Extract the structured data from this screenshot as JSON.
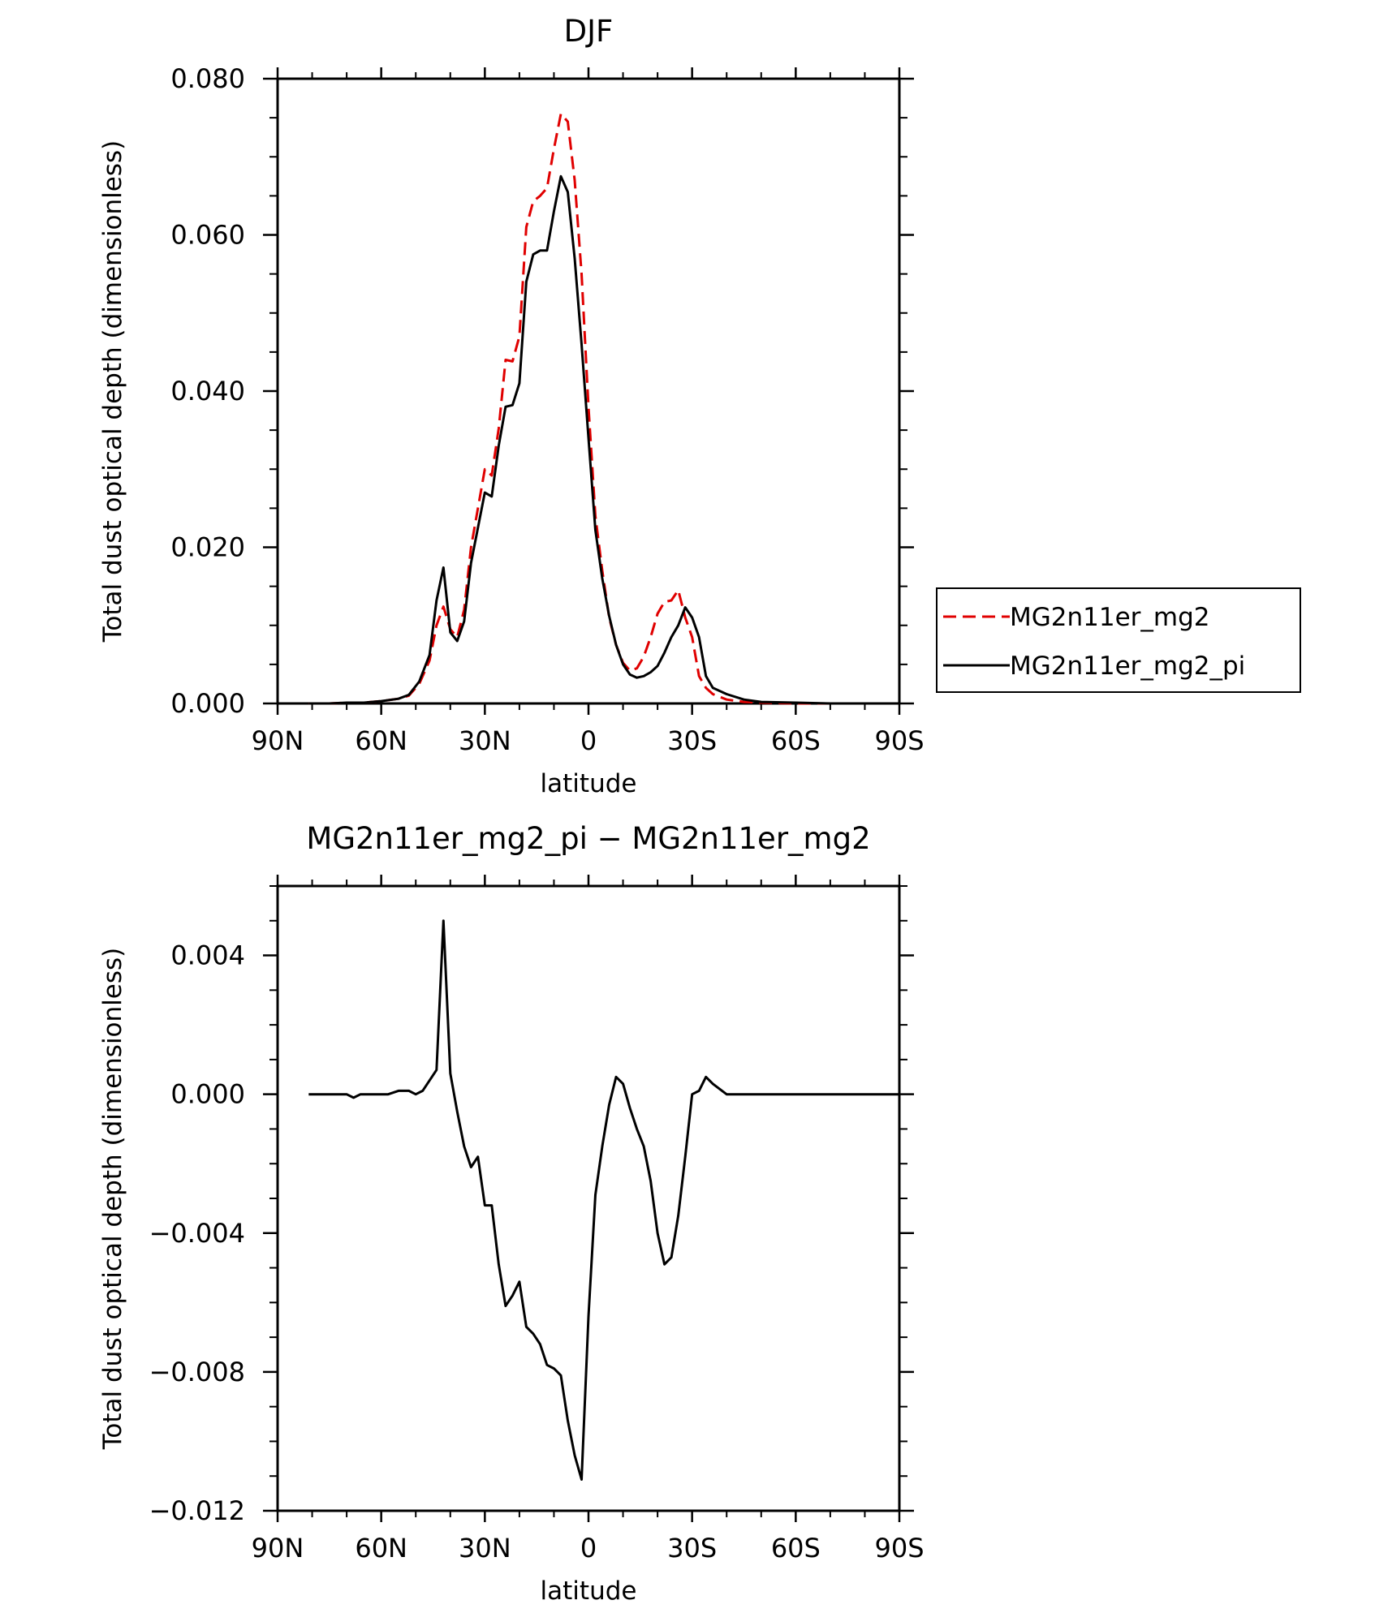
{
  "chart_data": [
    {
      "type": "line",
      "title": "DJF",
      "xlabel": "latitude",
      "ylabel": "Total dust optical depth (dimensionless)",
      "xlim": [
        90,
        -90
      ],
      "ylim": [
        0.0,
        0.08
      ],
      "x_ticks": [
        {
          "value": 90,
          "label": "90N"
        },
        {
          "value": 60,
          "label": "60N"
        },
        {
          "value": 30,
          "label": "30N"
        },
        {
          "value": 0,
          "label": "0"
        },
        {
          "value": -30,
          "label": "30S"
        },
        {
          "value": -60,
          "label": "60S"
        },
        {
          "value": -90,
          "label": "90S"
        }
      ],
      "y_ticks": [
        {
          "value": 0.0,
          "label": "0.000"
        },
        {
          "value": 0.02,
          "label": "0.020"
        },
        {
          "value": 0.04,
          "label": "0.040"
        },
        {
          "value": 0.06,
          "label": "0.060"
        },
        {
          "value": 0.08,
          "label": "0.080"
        }
      ],
      "legend": {
        "position": "right"
      },
      "series": [
        {
          "name": "MG2n11er_mg2",
          "color": "#e00000",
          "dash": "dashed",
          "x": [
            81,
            75,
            70,
            65,
            60,
            55,
            52,
            49,
            46,
            44,
            42,
            40,
            38,
            36,
            34,
            32,
            30,
            28,
            26,
            24,
            22,
            20,
            18,
            16,
            14,
            12,
            10,
            8,
            6,
            4,
            2,
            0,
            -2,
            -4,
            -6,
            -8,
            -10,
            -12,
            -14,
            -16,
            -18,
            -20,
            -22,
            -24,
            -26,
            -28,
            -30,
            -32,
            -34,
            -36,
            -40,
            -45,
            -50,
            -60,
            -70,
            -80,
            -90
          ],
          "y": [
            0.0,
            0.0,
            0.0001,
            0.0001,
            0.0003,
            0.0006,
            0.001,
            0.0025,
            0.0055,
            0.01,
            0.0124,
            0.0095,
            0.0085,
            0.012,
            0.02,
            0.025,
            0.03,
            0.0292,
            0.0352,
            0.044,
            0.0438,
            0.047,
            0.061,
            0.0643,
            0.065,
            0.066,
            0.071,
            0.0755,
            0.0745,
            0.067,
            0.055,
            0.038,
            0.024,
            0.017,
            0.011,
            0.0075,
            0.0052,
            0.0042,
            0.0045,
            0.006,
            0.0085,
            0.0115,
            0.013,
            0.0132,
            0.0145,
            0.011,
            0.0085,
            0.0035,
            0.002,
            0.0012,
            0.0005,
            0.0002,
            0.0001,
            0.0,
            0.0,
            0.0,
            0.0
          ]
        },
        {
          "name": "MG2n11er_mg2_pi",
          "color": "#000000",
          "dash": "solid",
          "x": [
            81,
            75,
            70,
            65,
            60,
            55,
            52,
            49,
            46,
            44,
            42,
            40,
            38,
            36,
            34,
            32,
            30,
            28,
            26,
            24,
            22,
            20,
            18,
            16,
            14,
            12,
            10,
            8,
            6,
            4,
            2,
            0,
            -2,
            -4,
            -6,
            -8,
            -10,
            -12,
            -14,
            -16,
            -18,
            -20,
            -22,
            -24,
            -26,
            -28,
            -30,
            -32,
            -34,
            -36,
            -40,
            -45,
            -50,
            -60,
            -70,
            -80,
            -90
          ],
          "y": [
            0.0,
            0.0,
            0.0001,
            0.0001,
            0.0003,
            0.0006,
            0.0011,
            0.0028,
            0.0062,
            0.0132,
            0.0174,
            0.0091,
            0.008,
            0.0105,
            0.018,
            0.0225,
            0.027,
            0.0265,
            0.033,
            0.038,
            0.0382,
            0.041,
            0.054,
            0.0575,
            0.058,
            0.058,
            0.063,
            0.0675,
            0.0655,
            0.057,
            0.046,
            0.034,
            0.0222,
            0.016,
            0.0112,
            0.0075,
            0.005,
            0.0037,
            0.0033,
            0.0035,
            0.004,
            0.0048,
            0.0065,
            0.0085,
            0.01,
            0.0123,
            0.011,
            0.0085,
            0.0035,
            0.002,
            0.0012,
            0.0005,
            0.0002,
            0.0001,
            0.0,
            0.0,
            0.0
          ]
        }
      ]
    },
    {
      "type": "line",
      "title": "MG2n11er_mg2_pi − MG2n11er_mg2",
      "xlabel": "latitude",
      "ylabel": "Total dust optical depth (dimensionless)",
      "xlim": [
        90,
        -90
      ],
      "ylim": [
        -0.012,
        0.006
      ],
      "x_ticks": [
        {
          "value": 90,
          "label": "90N"
        },
        {
          "value": 60,
          "label": "60N"
        },
        {
          "value": 30,
          "label": "30N"
        },
        {
          "value": 0,
          "label": "0"
        },
        {
          "value": -30,
          "label": "30S"
        },
        {
          "value": -60,
          "label": "60S"
        },
        {
          "value": -90,
          "label": "90S"
        }
      ],
      "y_ticks": [
        {
          "value": 0.004,
          "label": "0.004"
        },
        {
          "value": 0.0,
          "label": "0.000"
        },
        {
          "value": -0.004,
          "label": "−0.004"
        },
        {
          "value": -0.008,
          "label": "−0.008"
        },
        {
          "value": -0.012,
          "label": "−0.012"
        }
      ],
      "series": [
        {
          "color": "#000000",
          "dash": "solid",
          "x": [
            81,
            75,
            70,
            68,
            66,
            62,
            58,
            55,
            52,
            50,
            48,
            44,
            42,
            40,
            38,
            36,
            34,
            32,
            30,
            28,
            26,
            24,
            22,
            20,
            18,
            16,
            14,
            12,
            10,
            8,
            6,
            4,
            2,
            0,
            -2,
            -4,
            -6,
            -8,
            -10,
            -12,
            -14,
            -16,
            -18,
            -20,
            -22,
            -24,
            -26,
            -28,
            -30,
            -32,
            -34,
            -36,
            -40,
            -45,
            -55,
            -65,
            -75,
            -90
          ],
          "y": [
            0.0,
            0.0,
            0.0,
            -0.0001,
            0.0,
            0.0,
            0.0,
            0.0001,
            0.0001,
            0.0,
            0.0001,
            0.0007,
            0.005,
            0.0006,
            -0.0005,
            -0.0015,
            -0.0021,
            -0.0018,
            -0.0032,
            -0.0032,
            -0.0049,
            -0.0061,
            -0.0058,
            -0.0054,
            -0.0067,
            -0.0069,
            -0.0072,
            -0.0078,
            -0.0079,
            -0.0081,
            -0.0094,
            -0.0104,
            -0.0111,
            -0.0064,
            -0.0029,
            -0.0015,
            -0.0003,
            0.0005,
            0.0003,
            -0.0004,
            -0.001,
            -0.0015,
            -0.0025,
            -0.004,
            -0.0049,
            -0.0047,
            -0.0035,
            -0.0018,
            0.0,
            0.0001,
            0.0005,
            0.0003,
            0.0,
            0.0,
            0.0,
            0.0,
            0.0,
            0.0
          ]
        }
      ]
    }
  ]
}
